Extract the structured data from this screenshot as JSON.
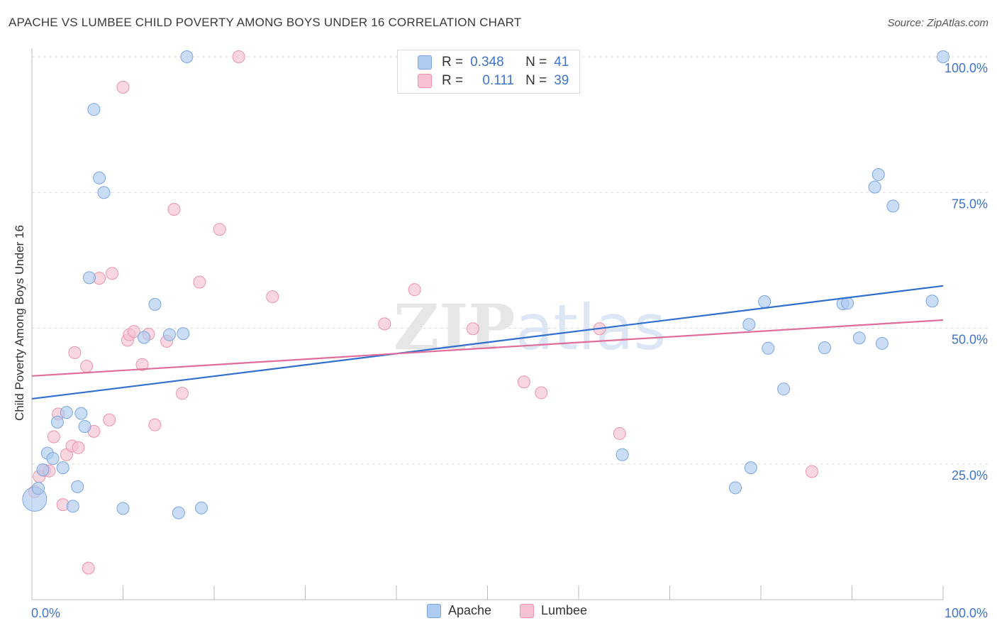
{
  "header": {
    "title": "APACHE VS LUMBEE CHILD POVERTY AMONG BOYS UNDER 16 CORRELATION CHART",
    "source": "Source: ZipAtlas.com"
  },
  "stats_legend": [
    {
      "r_label": "R =",
      "r_value": "0.348",
      "n_label": "N =",
      "n_value": "41"
    },
    {
      "r_label": "R =",
      "r_value": "0.111",
      "n_label": "N =",
      "n_value": "39"
    }
  ],
  "bottom_legend": [
    "Apache",
    "Lumbee"
  ],
  "colors": {
    "apache_fill": "#aecbf0",
    "apache_stroke": "#7aa6e0",
    "apache_line": "#2f6fcf",
    "lumbee_fill": "#f6c1d0",
    "lumbee_stroke": "#eb93ad",
    "lumbee_line": "#e06c99",
    "value_blue": "#3f74c8",
    "grid": "#dddddd",
    "axis": "#bbbbbb"
  },
  "watermark": {
    "bold": "ZIP",
    "light": "atlas"
  },
  "chart_data": {
    "type": "scatter",
    "title": "APACHE VS LUMBEE CHILD POVERTY AMONG BOYS UNDER 16 CORRELATION CHART",
    "xlabel": "",
    "ylabel": "Child Poverty Among Boys Under 16",
    "xlim": [
      0,
      100
    ],
    "ylim": [
      0,
      100
    ],
    "x_tick_labels": [
      "0.0%",
      "100.0%"
    ],
    "y_tick_labels": [
      "25.0%",
      "50.0%",
      "75.0%",
      "100.0%"
    ],
    "y_tick_values": [
      25,
      50,
      75,
      100
    ],
    "grid": true,
    "series": [
      {
        "name": "Apache",
        "r": 0.348,
        "n": 41,
        "trend": {
          "x": [
            0,
            100
          ],
          "y": [
            37.0,
            57.8
          ]
        },
        "points": [
          {
            "x": 0.3,
            "y": 18.5,
            "big": true
          },
          {
            "x": 0.7,
            "y": 20.5
          },
          {
            "x": 1.2,
            "y": 23.9
          },
          {
            "x": 1.7,
            "y": 27.0
          },
          {
            "x": 2.3,
            "y": 26.0
          },
          {
            "x": 2.8,
            "y": 32.7
          },
          {
            "x": 3.4,
            "y": 24.3
          },
          {
            "x": 3.8,
            "y": 34.5
          },
          {
            "x": 4.5,
            "y": 17.2
          },
          {
            "x": 5.0,
            "y": 20.8
          },
          {
            "x": 5.4,
            "y": 34.3
          },
          {
            "x": 5.8,
            "y": 31.9
          },
          {
            "x": 6.3,
            "y": 59.3
          },
          {
            "x": 6.8,
            "y": 90.3
          },
          {
            "x": 7.4,
            "y": 77.7
          },
          {
            "x": 7.9,
            "y": 75.0
          },
          {
            "x": 10.0,
            "y": 16.8
          },
          {
            "x": 12.3,
            "y": 48.3
          },
          {
            "x": 13.5,
            "y": 54.4
          },
          {
            "x": 15.1,
            "y": 48.8
          },
          {
            "x": 16.1,
            "y": 16.0
          },
          {
            "x": 16.6,
            "y": 49.0
          },
          {
            "x": 17.0,
            "y": 100.0
          },
          {
            "x": 18.6,
            "y": 16.9
          },
          {
            "x": 64.8,
            "y": 26.7
          },
          {
            "x": 77.2,
            "y": 20.6
          },
          {
            "x": 78.7,
            "y": 50.7
          },
          {
            "x": 78.9,
            "y": 24.3
          },
          {
            "x": 80.4,
            "y": 54.9
          },
          {
            "x": 80.8,
            "y": 46.3
          },
          {
            "x": 82.5,
            "y": 38.8
          },
          {
            "x": 87.0,
            "y": 46.4
          },
          {
            "x": 89.0,
            "y": 54.5
          },
          {
            "x": 89.5,
            "y": 54.6
          },
          {
            "x": 90.8,
            "y": 48.2
          },
          {
            "x": 92.5,
            "y": 76.0
          },
          {
            "x": 92.9,
            "y": 78.3
          },
          {
            "x": 93.3,
            "y": 47.2
          },
          {
            "x": 94.5,
            "y": 72.5
          },
          {
            "x": 98.8,
            "y": 55.0
          },
          {
            "x": 100.0,
            "y": 100.0
          }
        ]
      },
      {
        "name": "Lumbee",
        "r": 0.111,
        "n": 39,
        "trend": {
          "x": [
            0,
            100
          ],
          "y": [
            41.2,
            51.5
          ]
        },
        "points": [
          {
            "x": 0.3,
            "y": 19.9
          },
          {
            "x": 0.8,
            "y": 22.7
          },
          {
            "x": 1.4,
            "y": 23.8
          },
          {
            "x": 1.9,
            "y": 23.7
          },
          {
            "x": 2.4,
            "y": 30.0
          },
          {
            "x": 2.9,
            "y": 34.2
          },
          {
            "x": 3.4,
            "y": 17.5
          },
          {
            "x": 3.8,
            "y": 26.7
          },
          {
            "x": 4.4,
            "y": 28.3
          },
          {
            "x": 4.7,
            "y": 45.5
          },
          {
            "x": 5.1,
            "y": 28.0
          },
          {
            "x": 6.0,
            "y": 43.0
          },
          {
            "x": 6.2,
            "y": 5.8
          },
          {
            "x": 6.8,
            "y": 31.0
          },
          {
            "x": 7.4,
            "y": 59.2
          },
          {
            "x": 8.5,
            "y": 33.1
          },
          {
            "x": 8.8,
            "y": 60.1
          },
          {
            "x": 10.0,
            "y": 94.4
          },
          {
            "x": 10.5,
            "y": 47.8
          },
          {
            "x": 10.7,
            "y": 48.8
          },
          {
            "x": 11.2,
            "y": 49.4
          },
          {
            "x": 12.1,
            "y": 43.3
          },
          {
            "x": 12.8,
            "y": 48.9
          },
          {
            "x": 13.5,
            "y": 32.2
          },
          {
            "x": 14.8,
            "y": 47.6
          },
          {
            "x": 15.6,
            "y": 71.9
          },
          {
            "x": 16.5,
            "y": 38.0
          },
          {
            "x": 18.4,
            "y": 58.5
          },
          {
            "x": 20.6,
            "y": 68.2
          },
          {
            "x": 22.7,
            "y": 100.0
          },
          {
            "x": 26.4,
            "y": 55.8
          },
          {
            "x": 38.7,
            "y": 50.8
          },
          {
            "x": 42.0,
            "y": 57.1
          },
          {
            "x": 48.4,
            "y": 49.9
          },
          {
            "x": 54.0,
            "y": 40.1
          },
          {
            "x": 55.9,
            "y": 38.1
          },
          {
            "x": 62.3,
            "y": 49.9
          },
          {
            "x": 64.5,
            "y": 30.6
          },
          {
            "x": 85.6,
            "y": 23.6
          }
        ]
      }
    ]
  }
}
